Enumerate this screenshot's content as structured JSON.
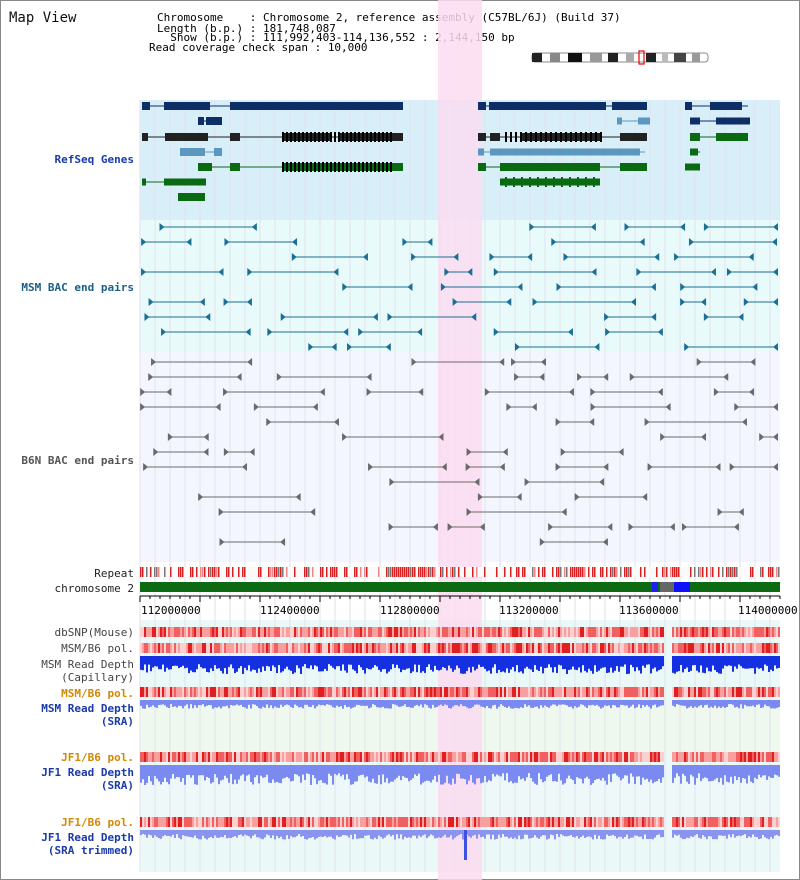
{
  "title": "Map View",
  "info": {
    "chromosome_label": "Chromosome    : ",
    "chromosome_value": "Chromosome 2, reference assembly (C57BL/6J) (Build 37)",
    "length_label": "Length (b.p.) : ",
    "length_value": "181,748,087",
    "show_label": "  Show (b.p.) : ",
    "show_value": "111,992,403-114,136,552 : 2,144,150 bp",
    "coverage_label": "Read coverage check span : ",
    "coverage_value": "10,000"
  },
  "tracks": {
    "refseq": "RefSeq Genes",
    "msm_bac": "MSM BAC end pairs",
    "b6n_bac": "B6N BAC end pairs",
    "repeat": "Repeat",
    "chromosome": "chromosome 2",
    "dbsnp": "dbSNP(Mouse)",
    "msm_b6_pol_1": "MSM/B6 pol.",
    "msm_read_depth": "MSM Read Depth",
    "capillary": "(Capillary)",
    "msm_b6_pol_2": "MSM/B6 pol.",
    "sra": "(SRA)",
    "jf1_b6_pol_1": "JF1/B6 pol.",
    "jf1_read_depth": "JF1 Read Depth",
    "jf1_b6_pol_2": "JF1/B6 pol.",
    "sra_trimmed": "(SRA trimmed)"
  },
  "axis": {
    "ticks": [
      "112000000",
      "112400000",
      "112800000",
      "113200000",
      "113600000",
      "114000000"
    ]
  },
  "colors": {
    "refseq_bg": "#d8effa",
    "msm_bg": "#e8fafa",
    "b6n_bg": "#f4f6ff",
    "highlight": "#fadcf0",
    "gene_navy": "#0d2e66",
    "gene_blue": "#5b98c0",
    "gene_green": "#0a6a12",
    "msm_pair": "#1b6f96",
    "b6n_pair": "#6a6a6a",
    "repeat_red": "#d92020",
    "chromosome_green": "#0b6a12",
    "snp_red": "#ef5050",
    "depth_blue": "#1430e0",
    "depth_light_blue": "#7a8af0"
  }
}
